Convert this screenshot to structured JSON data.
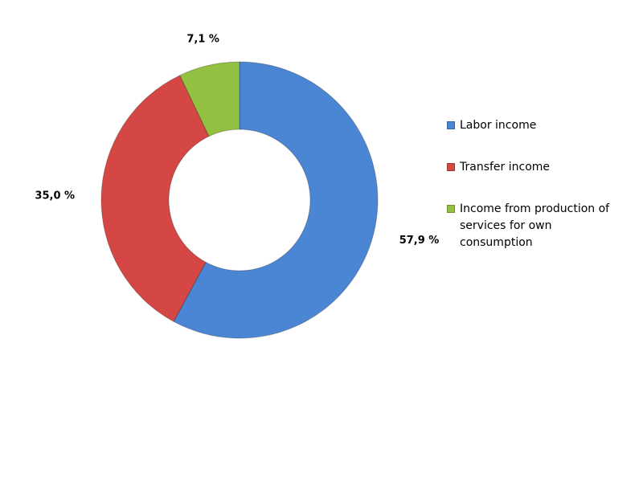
{
  "chart_data": {
    "type": "donut",
    "categories": [
      "Labor income",
      "Transfer income",
      "Income from production of services for own consumption"
    ],
    "values": [
      57.9,
      35.0,
      7.1
    ],
    "value_labels": [
      "57,9 %",
      "35,0 %",
      "7,1 %"
    ],
    "colors": [
      "#4a86d4",
      "#d44744",
      "#92c040"
    ],
    "legend": "right"
  }
}
